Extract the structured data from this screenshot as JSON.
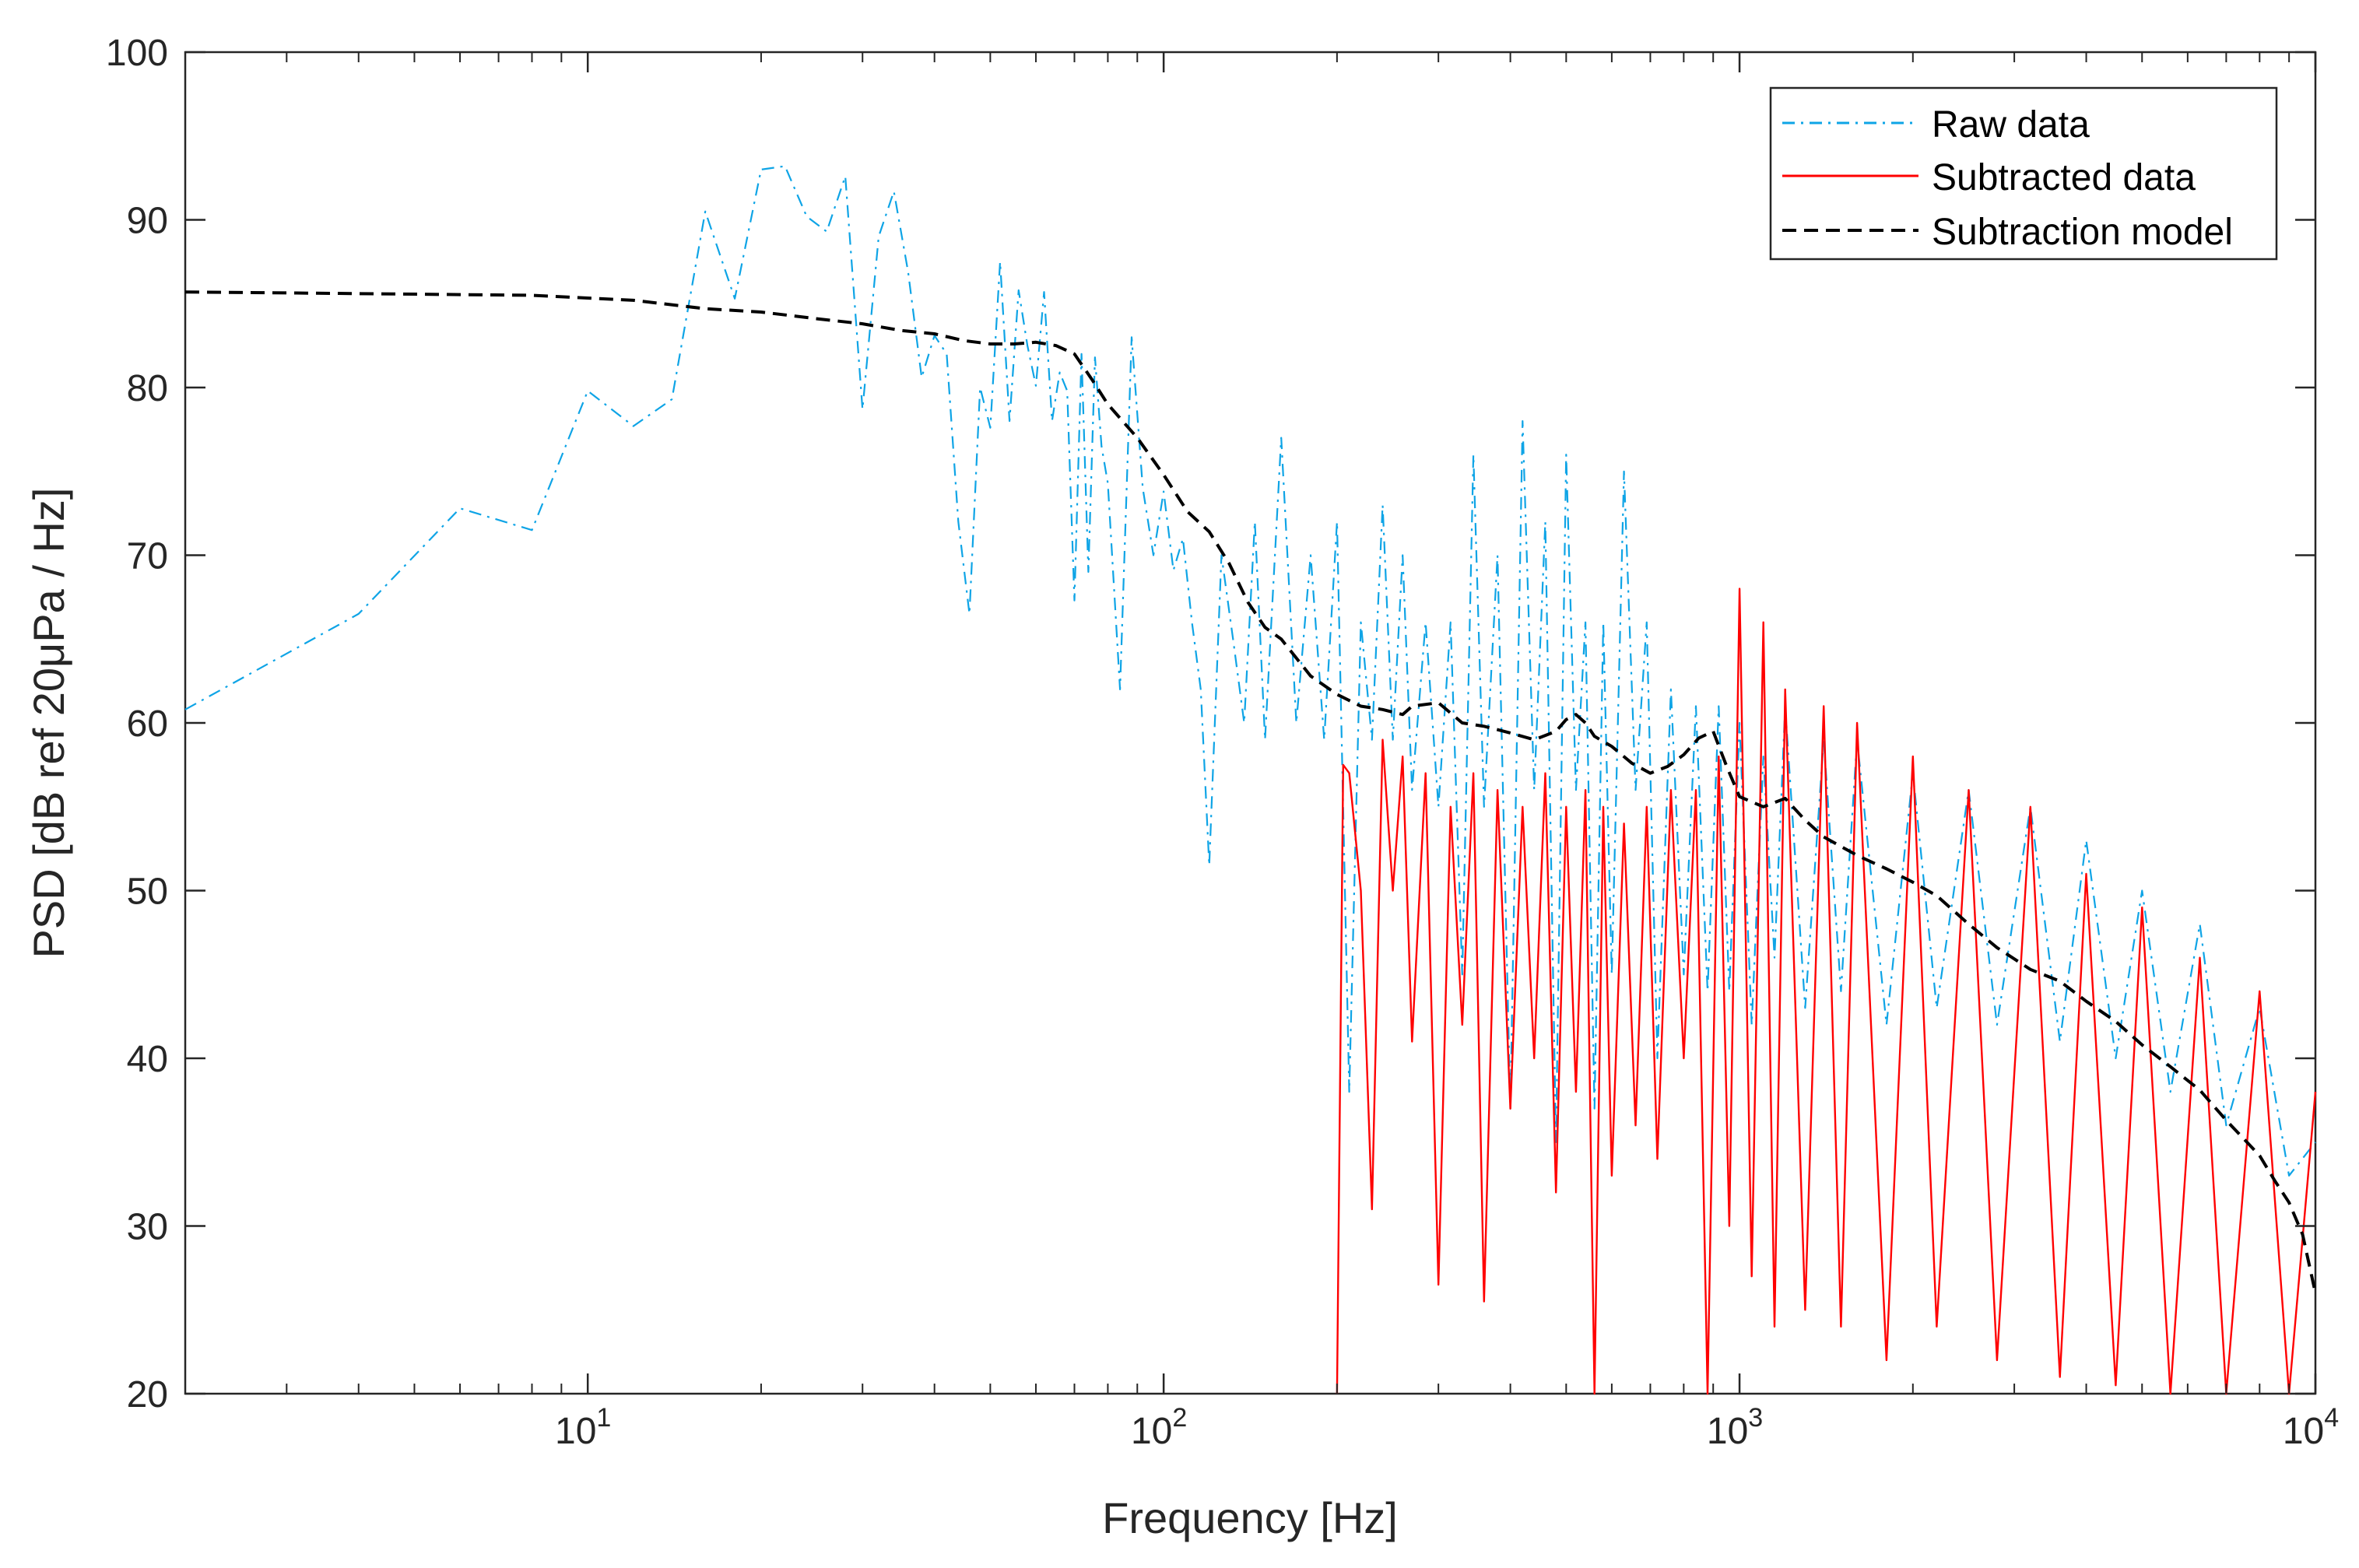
{
  "chart_data": {
    "type": "line",
    "title": "",
    "xlabel": "Frequency [Hz]",
    "ylabel": "PSD [dB ref 20μPa / Hz]",
    "xscale": "log",
    "xlim": [
      2,
      10000
    ],
    "ylim": [
      20,
      100
    ],
    "xticks": [
      {
        "value": 10,
        "base": "10",
        "exp": "1"
      },
      {
        "value": 100,
        "base": "10",
        "exp": "2"
      },
      {
        "value": 1000,
        "base": "10",
        "exp": "3"
      },
      {
        "value": 10000,
        "base": "10",
        "exp": "4"
      }
    ],
    "yticks": [
      20,
      30,
      40,
      50,
      60,
      70,
      80,
      90,
      100
    ],
    "legend_position": "top-right",
    "grid": false,
    "series": [
      {
        "name": "Raw data",
        "color": "#0ea4e6",
        "style": "dash-dot",
        "x": [
          2,
          4,
          6,
          8,
          10,
          12,
          14,
          16,
          18,
          20,
          22,
          24,
          26,
          28,
          30,
          32,
          34,
          36,
          38,
          40,
          42,
          44,
          46,
          48,
          50,
          52,
          54,
          56,
          58,
          60,
          62,
          64,
          66,
          68,
          70,
          72,
          74,
          76,
          78,
          80,
          84,
          88,
          92,
          96,
          100,
          104,
          108,
          112,
          116,
          120,
          126,
          132,
          138,
          144,
          150,
          160,
          170,
          180,
          190,
          200,
          210,
          220,
          230,
          240,
          250,
          260,
          270,
          285,
          300,
          315,
          330,
          345,
          360,
          380,
          400,
          420,
          440,
          460,
          480,
          500,
          520,
          540,
          560,
          580,
          600,
          630,
          660,
          690,
          720,
          760,
          800,
          840,
          880,
          920,
          960,
          1000,
          1050,
          1100,
          1150,
          1200,
          1300,
          1400,
          1500,
          1600,
          1800,
          2000,
          2200,
          2500,
          2800,
          3200,
          3600,
          4000,
          4500,
          5000,
          5600,
          6300,
          7000,
          8000,
          9000,
          10000
        ],
        "values": [
          60.8,
          66.5,
          72.8,
          71.5,
          79.8,
          77.7,
          79.3,
          90.5,
          85.3,
          93.0,
          93.2,
          90.2,
          89.3,
          92.6,
          78.7,
          89.0,
          91.7,
          86.9,
          80.6,
          83.1,
          82.0,
          72.0,
          66.5,
          80.0,
          77.6,
          87.5,
          78.0,
          85.8,
          82.5,
          80.1,
          85.7,
          78.0,
          80.9,
          79.8,
          67.3,
          82.0,
          69.0,
          81.8,
          76.5,
          74.3,
          62.0,
          83.0,
          74.0,
          70.0,
          73.8,
          69.1,
          71.0,
          66.0,
          62.0,
          51.5,
          70.0,
          65.0,
          60.0,
          72.0,
          59.0,
          77.0,
          60.0,
          70.0,
          59.0,
          72.0,
          38.0,
          66.0,
          59.0,
          73.0,
          59.0,
          70.0,
          56.0,
          66.0,
          55.0,
          66.0,
          45.0,
          76.0,
          55.0,
          70.0,
          37.0,
          78.0,
          56.0,
          72.0,
          35.0,
          76.0,
          56.0,
          66.0,
          37.0,
          66.0,
          45.0,
          75.0,
          56.0,
          66.0,
          40.0,
          62.0,
          45.0,
          61.0,
          44.0,
          61.0,
          44.0,
          60.0,
          42.0,
          58.0,
          46.0,
          61.0,
          43.0,
          59.0,
          44.0,
          59.0,
          42.0,
          57.0,
          43.0,
          56.0,
          42.0,
          55.0,
          41.0,
          53.0,
          40.0,
          50.0,
          38.0,
          48.0,
          36.0,
          43.0,
          33.0,
          35.0
        ]
      },
      {
        "name": "Subtracted data",
        "color": "#ff0000",
        "style": "solid",
        "x": [
          200,
          205,
          210,
          220,
          230,
          240,
          250,
          260,
          270,
          285,
          300,
          315,
          330,
          345,
          360,
          380,
          400,
          420,
          440,
          460,
          480,
          500,
          520,
          540,
          560,
          580,
          600,
          630,
          660,
          690,
          720,
          760,
          800,
          840,
          880,
          920,
          960,
          1000,
          1050,
          1100,
          1150,
          1200,
          1300,
          1400,
          1500,
          1600,
          1800,
          2000,
          2200,
          2500,
          2800,
          3200,
          3600,
          4000,
          4500,
          5000,
          5600,
          6300,
          7000,
          8000,
          9000,
          10000
        ],
        "values": [
          20.0,
          57.5,
          57.0,
          50.0,
          31.0,
          59.0,
          50.0,
          58.0,
          41.0,
          57.0,
          26.5,
          55.0,
          42.0,
          57.0,
          25.5,
          56.0,
          37.0,
          55.0,
          40.0,
          57.0,
          32.0,
          55.0,
          38.0,
          56.0,
          20.0,
          55.0,
          33.0,
          54.0,
          36.0,
          55.0,
          34.0,
          56.0,
          40.0,
          56.0,
          20.0,
          58.0,
          30.0,
          68.0,
          27.0,
          66.0,
          24.0,
          62.0,
          25.0,
          61.0,
          24.0,
          60.0,
          22.0,
          58.0,
          24.0,
          56.0,
          22.0,
          55.0,
          21.0,
          51.0,
          20.5,
          49.0,
          20.0,
          46.0,
          20.0,
          44.0,
          20.0,
          38.0
        ]
      },
      {
        "name": "Subtraction model",
        "color": "#000000",
        "style": "dashed",
        "x": [
          2,
          4,
          8,
          12,
          16,
          20,
          25,
          30,
          35,
          40,
          45,
          50,
          55,
          60,
          65,
          70,
          75,
          80,
          90,
          100,
          110,
          120,
          130,
          140,
          150,
          160,
          180,
          200,
          220,
          240,
          260,
          270,
          300,
          330,
          360,
          400,
          440,
          480,
          500,
          520,
          540,
          560,
          600,
          650,
          700,
          750,
          800,
          850,
          900,
          950,
          1000,
          1100,
          1200,
          1300,
          1400,
          1600,
          1800,
          2000,
          2200,
          2500,
          2800,
          3200,
          3600,
          4000,
          4500,
          5000,
          5600,
          6300,
          7000,
          8000,
          8500,
          9000,
          9500,
          10000
        ],
        "values": [
          85.7,
          85.6,
          85.5,
          85.2,
          84.7,
          84.5,
          84.1,
          83.8,
          83.4,
          83.2,
          82.8,
          82.6,
          82.6,
          82.7,
          82.5,
          82.0,
          80.5,
          79.0,
          77.0,
          74.8,
          72.6,
          71.4,
          69.5,
          67.2,
          65.7,
          65.0,
          62.8,
          61.7,
          61.0,
          60.8,
          60.5,
          61.0,
          61.2,
          60.0,
          59.8,
          59.4,
          59.0,
          59.5,
          60.2,
          60.5,
          60.0,
          59.2,
          58.6,
          57.6,
          57.0,
          57.4,
          58.1,
          59.1,
          59.5,
          57.4,
          55.6,
          55.0,
          55.5,
          54.2,
          53.2,
          52.1,
          51.3,
          50.5,
          49.7,
          48.0,
          46.6,
          45.3,
          44.6,
          43.4,
          42.2,
          40.8,
          39.5,
          38.1,
          36.3,
          34.2,
          32.7,
          31.4,
          29.5,
          26.0
        ]
      }
    ]
  }
}
